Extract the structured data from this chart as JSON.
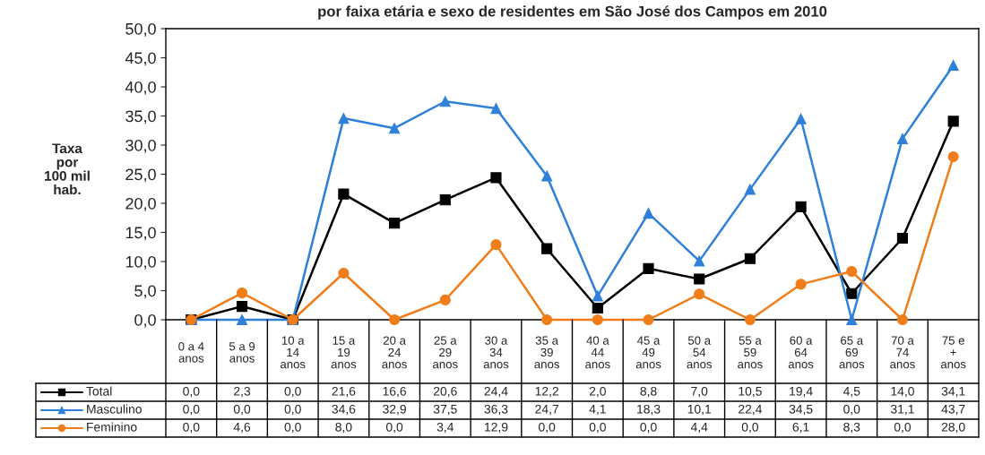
{
  "chart_data": {
    "type": "line",
    "title": "por faixa etária e sexo de residentes em São José dos Campos em 2010",
    "ylabel": "Taxa\npor\n100 mil\nhab.",
    "categories": [
      "0 a 4\nanos",
      "5 a 9\nanos",
      "10 a\n14\nanos",
      "15 a\n19\nanos",
      "20 a\n24\nanos",
      "25 a\n29\nanos",
      "30 a\n34\nanos",
      "35 a\n39\nanos",
      "40 a\n44\nanos",
      "45 a\n49\nanos",
      "50 a\n54\nanos",
      "55 a\n59\nanos",
      "60 a\n64\nanos",
      "65 a\n69\nanos",
      "70 a\n74\nanos",
      "75 e\n+\nanos"
    ],
    "series": [
      {
        "name": "Total",
        "color": "#000000",
        "marker": "square",
        "values": [
          0.0,
          2.3,
          0.0,
          21.6,
          16.6,
          20.6,
          24.4,
          12.2,
          2.0,
          8.8,
          7.0,
          10.5,
          19.4,
          4.5,
          14.0,
          34.1
        ],
        "value_labels": [
          "0,0",
          "2,3",
          "0,0",
          "21,6",
          "16,6",
          "20,6",
          "24,4",
          "12,2",
          "2,0",
          "8,8",
          "7,0",
          "10,5",
          "19,4",
          "4,5",
          "14,0",
          "34,1"
        ]
      },
      {
        "name": "Masculino",
        "color": "#2f80d8",
        "marker": "triangle",
        "values": [
          0.0,
          0.0,
          0.0,
          34.6,
          32.9,
          37.5,
          36.3,
          24.7,
          4.1,
          18.3,
          10.1,
          22.4,
          34.5,
          0.0,
          31.1,
          43.7
        ],
        "value_labels": [
          "0,0",
          "0,0",
          "0,0",
          "34,6",
          "32,9",
          "37,5",
          "36,3",
          "24,7",
          "4,1",
          "18,3",
          "10,1",
          "22,4",
          "34,5",
          "0,0",
          "31,1",
          "43,7"
        ]
      },
      {
        "name": "Feminino",
        "color": "#f07d1a",
        "marker": "circle",
        "values": [
          0.0,
          4.6,
          0.0,
          8.0,
          0.0,
          3.4,
          12.9,
          0.0,
          0.0,
          0.0,
          4.4,
          0.0,
          6.1,
          8.3,
          0.0,
          28.0
        ],
        "value_labels": [
          "0,0",
          "4,6",
          "0,0",
          "8,0",
          "0,0",
          "3,4",
          "12,9",
          "0,0",
          "0,0",
          "0,0",
          "4,4",
          "0,0",
          "6,1",
          "8,3",
          "0,0",
          "28,0"
        ]
      }
    ],
    "ylim": [
      0,
      50
    ],
    "yticks": [
      {
        "value": 0,
        "label": "0,0"
      },
      {
        "value": 5,
        "label": "5,0"
      },
      {
        "value": 10,
        "label": "10,0"
      },
      {
        "value": 15,
        "label": "15,0"
      },
      {
        "value": 20,
        "label": "20,0"
      },
      {
        "value": 25,
        "label": "25,0"
      },
      {
        "value": 30,
        "label": "30,0"
      },
      {
        "value": 35,
        "label": "35,0"
      },
      {
        "value": 40,
        "label": "40,0"
      },
      {
        "value": 45,
        "label": "45,0"
      },
      {
        "value": 50,
        "label": "50,0"
      }
    ],
    "grid": false,
    "legend": "bottom",
    "line_style": "solid"
  }
}
